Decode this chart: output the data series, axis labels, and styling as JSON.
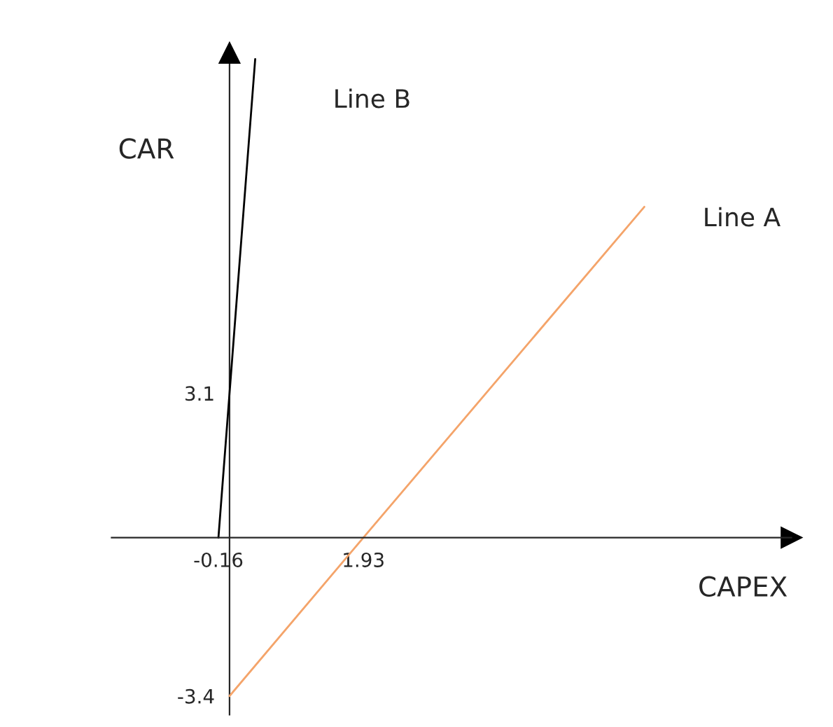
{
  "chart_data": {
    "type": "line",
    "xlabel": "CAPEX",
    "ylabel": "CAR",
    "series": [
      {
        "name": "Line A",
        "color": "#f4a46a",
        "x": [
          0,
          1.93,
          5.98
        ],
        "values": [
          -3.4,
          0,
          7.1
        ]
      },
      {
        "name": "Line B",
        "color": "#000000",
        "x": [
          -0.16,
          0,
          0.37
        ],
        "values": [
          0,
          3.1,
          10.27
        ]
      }
    ],
    "xlim": [
      -1.7,
      8.1
    ],
    "ylim": [
      -3.8,
      10.4
    ],
    "xticks": [
      -0.16,
      1.93
    ],
    "yticks": [
      -3.4,
      3.1
    ],
    "grid": false,
    "legend": false,
    "marker": "none",
    "line_style": "solid"
  }
}
